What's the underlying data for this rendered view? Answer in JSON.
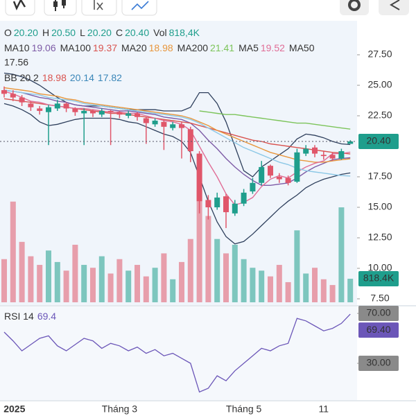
{
  "chart_data": {
    "type": "candlestick",
    "ohlc": [
      {
        "label": "O",
        "value": "20.20"
      },
      {
        "label": "H",
        "value": "20.50"
      },
      {
        "label": "L",
        "value": "20.20"
      },
      {
        "label": "C",
        "value": "20.40"
      },
      {
        "label": "Vol",
        "value": "818,4K"
      }
    ],
    "categories": [
      null,
      "2025",
      null,
      null,
      null,
      null,
      null,
      null,
      null,
      null,
      null,
      null,
      null,
      "Tháng 3",
      null,
      null,
      null,
      null,
      null,
      null,
      null,
      null,
      null,
      null,
      null,
      null,
      null,
      "Tháng 5",
      null,
      null,
      null,
      null,
      null,
      null,
      null,
      null,
      "11",
      null,
      null,
      null
    ],
    "candles": {
      "open": [
        24.6,
        24.3,
        24.0,
        23.5,
        23.1,
        22.8,
        23.1,
        23.5,
        23.1,
        22.7,
        22.9,
        22.6,
        22.9,
        22.8,
        22.5,
        22.7,
        22.3,
        21.8,
        22.0,
        21.5,
        21.8,
        21.4,
        19.4,
        15.6,
        15.0,
        15.9,
        14.5,
        15.3,
        16.3,
        17.0,
        18.4,
        17.5,
        17.4,
        17.1,
        19.4,
        19.9,
        19.3,
        19.3,
        19.0,
        20.2
      ],
      "high": [
        24.9,
        24.6,
        24.2,
        23.7,
        23.3,
        23.4,
        23.8,
        23.6,
        23.2,
        23.1,
        23.0,
        23.1,
        23.0,
        22.9,
        22.9,
        22.8,
        22.4,
        22.3,
        22.2,
        22.0,
        22.0,
        21.6,
        19.6,
        16.0,
        16.2,
        16.1,
        15.6,
        16.5,
        17.4,
        18.8,
        18.5,
        17.8,
        17.6,
        19.8,
        20.1,
        20.1,
        19.6,
        19.5,
        19.8,
        20.5
      ],
      "low": [
        24.0,
        23.7,
        23.3,
        22.9,
        22.6,
        20.1,
        22.9,
        22.8,
        22.5,
        20.1,
        22.4,
        22.4,
        20.1,
        22.3,
        22.3,
        22.1,
        20.2,
        21.6,
        19.7,
        21.3,
        19.0,
        18.7,
        14.5,
        14.0,
        14.8,
        13.3,
        14.3,
        15.1,
        16.1,
        16.8,
        17.4,
        17.0,
        16.8,
        17.0,
        19.2,
        19.1,
        18.9,
        18.8,
        18.9,
        20.2
      ],
      "close": [
        24.3,
        24.0,
        23.6,
        23.2,
        22.9,
        23.2,
        23.5,
        23.1,
        22.8,
        22.9,
        22.7,
        22.9,
        22.8,
        22.6,
        22.7,
        22.4,
        21.9,
        22.1,
        21.6,
        21.8,
        21.5,
        19.6,
        15.5,
        15.0,
        15.8,
        14.6,
        15.3,
        16.2,
        17.0,
        18.3,
        17.6,
        17.3,
        17.0,
        19.5,
        19.8,
        19.4,
        19.2,
        19.0,
        19.6,
        20.4
      ],
      "close_label": "20.40",
      "up_color": "#1f9e8c",
      "down_color": "#e0566a"
    },
    "series": [
      {
        "name": "MA10",
        "color": "#7d5ba6",
        "values": [
          24.6,
          24.5,
          24.4,
          24.2,
          24.0,
          23.9,
          23.7,
          23.6,
          23.4,
          23.3,
          23.2,
          23.1,
          23.0,
          22.9,
          22.9,
          22.8,
          22.7,
          22.6,
          22.4,
          22.3,
          22.2,
          21.9,
          21.3,
          20.5,
          19.8,
          19.0,
          18.3,
          17.7,
          17.2,
          16.8,
          16.8,
          16.9,
          17.0,
          17.4,
          17.9,
          18.3,
          18.6,
          18.9,
          19.0,
          19.06
        ]
      },
      {
        "name": "MA100",
        "color": "#d9534f",
        "values": [
          23.9,
          23.8,
          23.7,
          23.6,
          23.5,
          23.4,
          23.3,
          23.2,
          23.1,
          23.0,
          22.9,
          22.8,
          22.7,
          22.7,
          22.6,
          22.5,
          22.4,
          22.3,
          22.2,
          22.1,
          22.0,
          21.9,
          21.7,
          21.5,
          21.3,
          21.1,
          20.9,
          20.7,
          20.5,
          20.4,
          20.2,
          20.1,
          20.0,
          19.9,
          19.8,
          19.7,
          19.6,
          19.5,
          19.45,
          19.37
        ]
      },
      {
        "name": "MA20",
        "color": "#e8963c",
        "values": [
          24.8,
          24.7,
          24.6,
          24.5,
          24.3,
          24.2,
          24.1,
          23.9,
          23.8,
          23.6,
          23.5,
          23.4,
          23.3,
          23.2,
          23.1,
          23.0,
          22.9,
          22.8,
          22.7,
          22.6,
          22.5,
          22.3,
          22.0,
          21.7,
          21.3,
          21.0,
          20.7,
          20.4,
          20.1,
          19.8,
          19.5,
          19.3,
          19.1,
          18.9,
          18.8,
          18.7,
          18.7,
          18.8,
          18.9,
          18.98
        ]
      },
      {
        "name": "MA200",
        "color": "#7cc45a",
        "values": [
          null,
          null,
          null,
          null,
          null,
          null,
          null,
          null,
          null,
          null,
          null,
          null,
          null,
          null,
          null,
          null,
          null,
          null,
          null,
          null,
          null,
          null,
          22.9,
          22.8,
          22.7,
          22.6,
          22.6,
          22.5,
          22.4,
          22.3,
          22.2,
          22.1,
          22.0,
          21.9,
          21.9,
          21.8,
          21.7,
          21.6,
          21.5,
          21.41
        ]
      },
      {
        "name": "MA5",
        "color": "#e06d96",
        "values": [
          24.5,
          24.3,
          24.0,
          23.7,
          23.6,
          23.4,
          23.3,
          23.2,
          23.1,
          23.1,
          23.0,
          22.9,
          22.8,
          22.8,
          22.7,
          22.7,
          22.5,
          22.3,
          22.1,
          22.0,
          21.8,
          21.3,
          20.0,
          18.7,
          17.5,
          16.1,
          15.2,
          15.4,
          15.8,
          16.7,
          17.3,
          17.6,
          17.4,
          17.9,
          18.3,
          18.6,
          18.8,
          19.4,
          19.4,
          19.52
        ]
      },
      {
        "name": "MA50",
        "color": "#8cc8e6",
        "values": [
          24.6,
          24.5,
          24.4,
          24.3,
          24.2,
          24.0,
          23.9,
          23.8,
          23.7,
          23.5,
          23.4,
          23.3,
          23.2,
          23.1,
          23.0,
          22.9,
          22.8,
          22.7,
          22.6,
          22.5,
          22.4,
          22.2,
          21.9,
          21.5,
          21.1,
          20.7,
          20.3,
          19.9,
          19.6,
          19.3,
          19.0,
          18.7,
          18.5,
          18.2,
          18.0,
          17.9,
          17.8,
          17.7,
          17.6,
          17.56
        ]
      }
    ],
    "bollinger": {
      "name": "BB 20 2",
      "color": "#2e3f5c",
      "middle_color": "#d9534f",
      "band_label_color": "#3a86b8",
      "upper": [
        26.0,
        25.9,
        25.7,
        25.4,
        25.0,
        24.5,
        24.0,
        23.6,
        23.4,
        23.3,
        23.3,
        23.3,
        23.2,
        23.1,
        23.0,
        23.0,
        23.0,
        23.0,
        22.9,
        22.9,
        22.9,
        23.2,
        24.4,
        24.4,
        23.5,
        22.0,
        20.0,
        18.0,
        17.5,
        18.3,
        18.8,
        19.3,
        19.8,
        20.6,
        21.0,
        20.9,
        20.7,
        20.4,
        20.2,
        20.14
      ],
      "lower": [
        23.5,
        23.3,
        23.0,
        22.6,
        22.0,
        21.7,
        21.8,
        22.0,
        22.2,
        22.3,
        22.3,
        22.3,
        22.3,
        22.2,
        22.0,
        21.9,
        21.6,
        21.3,
        21.0,
        20.8,
        20.4,
        19.5,
        17.5,
        15.5,
        13.8,
        12.6,
        12.0,
        12.2,
        12.8,
        13.5,
        14.2,
        14.9,
        15.5,
        16.0,
        16.6,
        17.0,
        17.3,
        17.5,
        17.7,
        17.82
      ]
    },
    "ylim": [
      7.5,
      30
    ],
    "yticks": [
      {
        "value": 7.5,
        "label": "7.50"
      },
      {
        "value": 10,
        "label": "10.00"
      },
      {
        "value": 12.5,
        "label": "12.50"
      },
      {
        "value": 15,
        "label": "15.00"
      },
      {
        "value": 17.5,
        "label": "17.50"
      },
      {
        "value": 22.5,
        "label": "22.50"
      },
      {
        "value": 25,
        "label": "25.00"
      },
      {
        "value": 27.5,
        "label": "27.50"
      }
    ],
    "volume": {
      "values": [
        1500,
        3500,
        2100,
        1600,
        1300,
        1800,
        1400,
        1100,
        2000,
        1300,
        1200,
        1600,
        1000,
        1500,
        1100,
        1300,
        900,
        1200,
        1700,
        800,
        1400,
        2200,
        3900,
        3000,
        2200,
        1700,
        2000,
        1500,
        1200,
        1100,
        900,
        1300,
        700,
        2500,
        1000,
        1200,
        800,
        600,
        3300,
        818.4
      ],
      "label": "818.4K",
      "lim": [
        0,
        4000
      ]
    },
    "rsi": {
      "name": "RSI 14",
      "color": "#6b56b8",
      "values": [
        55,
        48,
        40,
        45,
        50,
        52,
        44,
        40,
        45,
        50,
        48,
        42,
        46,
        44,
        40,
        43,
        38,
        41,
        36,
        38,
        34,
        30,
        7,
        10,
        20,
        16,
        24,
        30,
        36,
        42,
        40,
        44,
        46,
        66,
        64,
        60,
        56,
        58,
        62,
        69.4
      ],
      "label": "69.40",
      "lim": [
        0,
        75
      ],
      "ticks": [
        {
          "value": 70,
          "label": "70.00"
        },
        {
          "value": 30,
          "label": "30.00"
        }
      ]
    }
  }
}
